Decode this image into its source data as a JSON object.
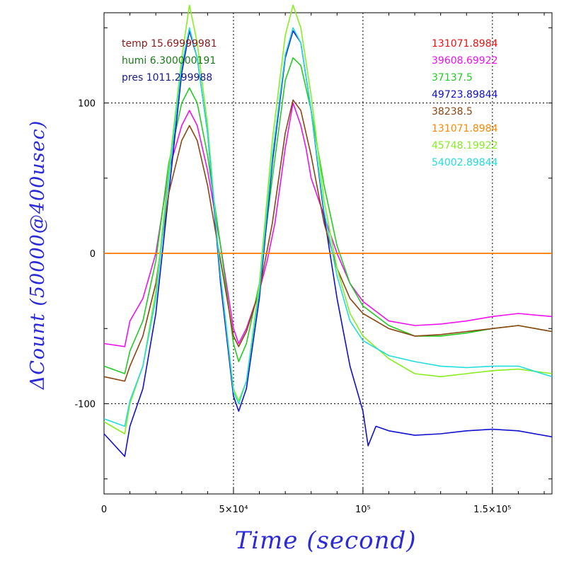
{
  "chart_data": {
    "type": "line",
    "xlabel": "Time (second)",
    "ylabel": "ΔCount (50000@400usec)",
    "xlim": [
      0,
      173000
    ],
    "ylim": [
      -160,
      160
    ],
    "x_ticks": [
      {
        "value": 0,
        "label": "0"
      },
      {
        "value": 50000,
        "label": "5×10⁴"
      },
      {
        "value": 100000,
        "label": "10⁵"
      },
      {
        "value": 150000,
        "label": "1.5×10⁵"
      }
    ],
    "y_ticks": [
      {
        "value": 100,
        "label": "100"
      },
      {
        "value": 0,
        "label": "0"
      },
      {
        "value": -100,
        "label": "-100"
      }
    ],
    "grid": true,
    "env_legend": [
      {
        "text": "temp 15.69999981",
        "color": "#8b1a1a"
      },
      {
        "text": "humi 6.300000191",
        "color": "#1a7a1a"
      },
      {
        "text": "pres 1011.299988",
        "color": "#1a1a8b"
      }
    ],
    "series": [
      {
        "name": "131071.8984",
        "color": "#ee1111",
        "x": [
          0,
          173000
        ],
        "y": [
          0,
          0
        ]
      },
      {
        "name": "39608.69922",
        "color": "#ee11ee",
        "x": [
          0,
          8000,
          10000,
          15000,
          20000,
          25000,
          30000,
          33000,
          36000,
          40000,
          45000,
          50000,
          52000,
          55000,
          60000,
          63000,
          66000,
          70000,
          73000,
          76000,
          78000,
          80000,
          85000,
          90000,
          95000,
          100000,
          110000,
          120000,
          130000,
          140000,
          150000,
          160000,
          173000
        ],
        "y": [
          -60,
          -62,
          -45,
          -30,
          0,
          55,
          85,
          95,
          85,
          55,
          5,
          -50,
          -60,
          -50,
          -25,
          -5,
          20,
          70,
          100,
          85,
          70,
          50,
          25,
          0,
          -20,
          -32,
          -45,
          -48,
          -47,
          -45,
          -42,
          -40,
          -42
        ]
      },
      {
        "name": "37137.5",
        "color": "#22cc22",
        "x": [
          0,
          8000,
          10000,
          15000,
          20000,
          25000,
          30000,
          33000,
          36000,
          40000,
          45000,
          50000,
          52000,
          55000,
          60000,
          65000,
          70000,
          73000,
          76000,
          80000,
          85000,
          90000,
          95000,
          100000,
          110000,
          120000,
          130000,
          140000,
          150000,
          160000,
          173000
        ],
        "y": [
          -75,
          -80,
          -65,
          -45,
          -5,
          60,
          100,
          110,
          100,
          65,
          5,
          -60,
          -72,
          -60,
          -20,
          50,
          115,
          130,
          125,
          95,
          45,
          5,
          -20,
          -35,
          -48,
          -55,
          -55,
          -53,
          -50,
          -48,
          -52
        ]
      },
      {
        "name": "49723.89844",
        "color": "#1111cc",
        "x": [
          0,
          8000,
          10000,
          15000,
          20000,
          25000,
          30000,
          33000,
          36000,
          40000,
          45000,
          50000,
          52000,
          55000,
          60000,
          65000,
          70000,
          73000,
          76000,
          80000,
          85000,
          90000,
          95000,
          100000,
          102000,
          105000,
          110000,
          120000,
          130000,
          140000,
          150000,
          160000,
          173000
        ],
        "y": [
          -120,
          -135,
          -115,
          -90,
          -40,
          40,
          120,
          148,
          130,
          80,
          -20,
          -95,
          -105,
          -90,
          -30,
          60,
          130,
          148,
          140,
          95,
          25,
          -30,
          -75,
          -105,
          -128,
          -115,
          -118,
          -121,
          -120,
          -118,
          -117,
          -118,
          -122
        ]
      },
      {
        "name": "38238.5",
        "color": "#8b4513",
        "x": [
          0,
          8000,
          10000,
          15000,
          20000,
          25000,
          30000,
          33000,
          36000,
          40000,
          45000,
          50000,
          52000,
          55000,
          60000,
          65000,
          70000,
          73000,
          76000,
          80000,
          85000,
          90000,
          95000,
          100000,
          110000,
          120000,
          130000,
          140000,
          150000,
          160000,
          173000
        ],
        "y": [
          -82,
          -85,
          -75,
          -55,
          -20,
          40,
          75,
          85,
          75,
          45,
          -5,
          -55,
          -62,
          -52,
          -25,
          20,
          80,
          102,
          95,
          65,
          20,
          -10,
          -30,
          -40,
          -50,
          -55,
          -54,
          -52,
          -50,
          -48,
          -52
        ]
      },
      {
        "name": "131071.8984",
        "color": "#ff8800",
        "x": [
          0,
          173000
        ],
        "y": [
          0,
          0
        ]
      },
      {
        "name": "45748.19922",
        "color": "#88ee22",
        "x": [
          0,
          8000,
          10000,
          15000,
          20000,
          25000,
          30000,
          33000,
          36000,
          40000,
          45000,
          50000,
          52000,
          55000,
          60000,
          65000,
          70000,
          73000,
          76000,
          80000,
          85000,
          90000,
          95000,
          100000,
          110000,
          120000,
          130000,
          140000,
          150000,
          160000,
          173000
        ],
        "y": [
          -112,
          -120,
          -100,
          -75,
          -25,
          55,
          130,
          165,
          140,
          85,
          -15,
          -90,
          -98,
          -85,
          -20,
          75,
          145,
          165,
          150,
          105,
          35,
          -10,
          -40,
          -55,
          -70,
          -80,
          -82,
          -80,
          -78,
          -77,
          -80
        ]
      },
      {
        "name": "54002.89844",
        "color": "#22dddd",
        "x": [
          0,
          8000,
          10000,
          15000,
          20000,
          25000,
          30000,
          33000,
          36000,
          40000,
          45000,
          50000,
          52000,
          55000,
          60000,
          65000,
          70000,
          73000,
          76000,
          80000,
          85000,
          90000,
          95000,
          100000,
          110000,
          120000,
          130000,
          140000,
          150000,
          160000,
          173000
        ],
        "y": [
          -110,
          -115,
          -98,
          -75,
          -30,
          50,
          125,
          150,
          130,
          80,
          -15,
          -92,
          -100,
          -85,
          -25,
          65,
          132,
          150,
          140,
          95,
          28,
          -15,
          -45,
          -58,
          -68,
          -72,
          -75,
          -76,
          -75,
          -75,
          -82
        ]
      }
    ]
  }
}
